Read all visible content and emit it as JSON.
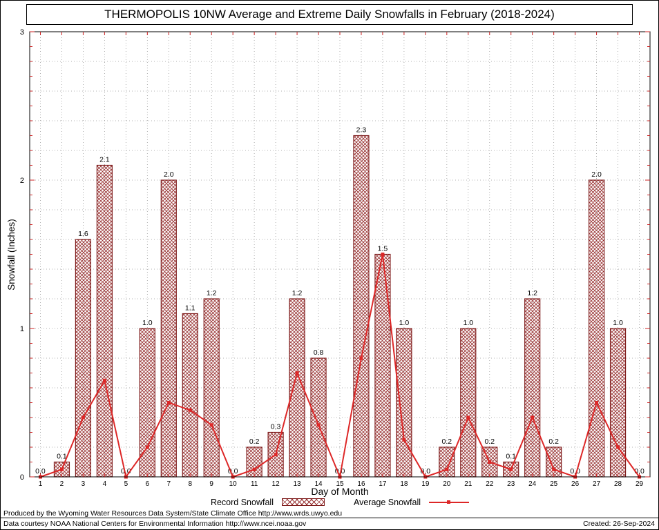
{
  "chart_data": {
    "type": "bar",
    "title": "THERMOPOLIS 10NW Average and Extreme Daily Snowfalls in February (2018-2024)",
    "xlabel": "Day of Month",
    "ylabel": "Snowfall (Inches)",
    "ylim": [
      0,
      3
    ],
    "yticks": [
      0,
      1,
      2,
      3
    ],
    "grid": true,
    "legend_position": "bottom",
    "categories": [
      1,
      2,
      3,
      4,
      5,
      6,
      7,
      8,
      9,
      10,
      11,
      12,
      13,
      14,
      15,
      16,
      17,
      18,
      19,
      20,
      21,
      22,
      23,
      24,
      25,
      26,
      27,
      28,
      29
    ],
    "series": [
      {
        "name": "Record Snowfall",
        "type": "bar",
        "color": "#993333",
        "border": "#801f1f",
        "values": [
          0.0,
          0.1,
          1.6,
          2.1,
          0.0,
          1.0,
          2.0,
          1.1,
          1.2,
          0.0,
          0.2,
          0.3,
          1.2,
          0.8,
          0.0,
          2.3,
          1.5,
          1.0,
          0.0,
          0.2,
          1.0,
          0.2,
          0.1,
          1.2,
          0.2,
          0.0,
          2.0,
          1.0,
          0.0
        ]
      },
      {
        "name": "Average Snowfall",
        "type": "line",
        "color": "#dd2727",
        "values": [
          0.0,
          0.05,
          0.4,
          0.65,
          0.0,
          0.2,
          0.5,
          0.45,
          0.35,
          0.0,
          0.05,
          0.15,
          0.7,
          0.35,
          0.0,
          0.8,
          1.5,
          0.25,
          0.0,
          0.05,
          0.4,
          0.1,
          0.05,
          0.4,
          0.05,
          0.0,
          0.5,
          0.2,
          0.0
        ]
      }
    ],
    "bar_value_labels": [
      "0.0",
      "0.1",
      "1.6",
      "2.1",
      "0.0",
      "1.0",
      "2.0",
      "1.1",
      "1.2",
      "0.0",
      "0.2",
      "0.3",
      "1.2",
      "0.8",
      "0.0",
      "2.3",
      "1.5",
      "1.0",
      "0.0",
      "0.2",
      "1.0",
      "0.2",
      "0.1",
      "1.2",
      "0.2",
      "0.0",
      "2.0",
      "1.0",
      "0.0"
    ],
    "axis_tick_color": "#cc2222",
    "grid_color": "#999999"
  },
  "footer": {
    "line1": "Produced by the Wyoming Water Resources Data System/State Climate Office http://www.wrds.uwyo.edu",
    "line2": "Data courtesy NOAA National Centers for Environmental Information http://www.ncei.noaa.gov",
    "created": "Created: 26-Sep-2024"
  }
}
